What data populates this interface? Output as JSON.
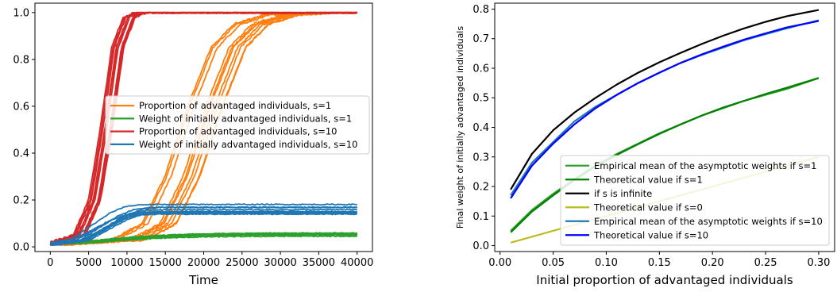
{
  "chart_data": [
    {
      "type": "line",
      "title": "",
      "xlabel": "Time",
      "ylabel": "",
      "xlim": [
        -2000,
        42000
      ],
      "ylim": [
        -0.02,
        1.04
      ],
      "x_ticks": [
        "0",
        "5000",
        "10000",
        "15000",
        "20000",
        "25000",
        "30000",
        "35000",
        "40000"
      ],
      "y_ticks": [
        "0.0",
        "0.2",
        "0.4",
        "0.6",
        "0.8",
        "1.0"
      ],
      "legend_position": "center-right",
      "grid": false,
      "runs_per_series": 10,
      "series": [
        {
          "name": "Proportion of advantaged individuals, s=1",
          "color": "#ff7f0e",
          "x": [
            0,
            10000,
            14000,
            17000,
            20000,
            23000,
            26000,
            30000,
            35000,
            40000
          ],
          "y": [
            0.01,
            0.03,
            0.1,
            0.3,
            0.6,
            0.85,
            0.95,
            0.99,
            1.0,
            1.0
          ]
        },
        {
          "name": "Weight of initially advantaged individuals, s=1",
          "color": "#2ca02c",
          "x": [
            0,
            5000,
            10000,
            15000,
            20000,
            25000,
            30000,
            40000
          ],
          "y": [
            0.01,
            0.02,
            0.035,
            0.045,
            0.05,
            0.052,
            0.053,
            0.053
          ]
        },
        {
          "name": "Proportion of advantaged individuals, s=10",
          "color": "#d62728",
          "x": [
            0,
            4000,
            6000,
            7500,
            9000,
            10500,
            12000,
            15000,
            40000
          ],
          "y": [
            0.01,
            0.05,
            0.2,
            0.5,
            0.85,
            0.98,
            1.0,
            1.0,
            1.0
          ]
        },
        {
          "name": "Weight of initially advantaged individuals, s=10",
          "color": "#1f77b4",
          "x": [
            0,
            4000,
            7000,
            9000,
            11000,
            13000,
            15000,
            40000
          ],
          "y": [
            0.01,
            0.03,
            0.09,
            0.13,
            0.155,
            0.162,
            0.163,
            0.163
          ]
        }
      ]
    },
    {
      "type": "line",
      "title": "",
      "xlabel": "Initial proportion of advantaged individuals",
      "ylabel": "Final weight of initially advantaged individuals",
      "xlim": [
        -0.005,
        0.315
      ],
      "ylim": [
        -0.02,
        0.82
      ],
      "x_ticks": [
        "0.00",
        "0.05",
        "0.10",
        "0.15",
        "0.20",
        "0.25",
        "0.30"
      ],
      "y_ticks": [
        "0.0",
        "0.1",
        "0.2",
        "0.3",
        "0.4",
        "0.5",
        "0.6",
        "0.7",
        "0.8"
      ],
      "legend_position": "lower-right",
      "grid": false,
      "series": [
        {
          "name": "Empirical mean of the asymptotic weights if s=1",
          "color": "#2ca02c",
          "x": [
            0.01,
            0.03,
            0.05,
            0.07,
            0.09,
            0.11,
            0.13,
            0.15,
            0.17,
            0.19,
            0.21,
            0.23,
            0.25,
            0.27,
            0.3
          ],
          "y": [
            0.05,
            0.12,
            0.175,
            0.225,
            0.272,
            0.31,
            0.345,
            0.38,
            0.41,
            0.44,
            0.465,
            0.49,
            0.51,
            0.53,
            0.567
          ]
        },
        {
          "name": "Theoretical value if s=1",
          "color": "#008000",
          "x": [
            0.01,
            0.03,
            0.05,
            0.07,
            0.09,
            0.11,
            0.13,
            0.15,
            0.17,
            0.19,
            0.21,
            0.23,
            0.25,
            0.27,
            0.3
          ],
          "y": [
            0.045,
            0.115,
            0.17,
            0.222,
            0.268,
            0.307,
            0.343,
            0.378,
            0.41,
            0.44,
            0.467,
            0.49,
            0.513,
            0.534,
            0.567
          ]
        },
        {
          "name": "if s is infinite",
          "color": "#000000",
          "x": [
            0.01,
            0.03,
            0.05,
            0.07,
            0.09,
            0.11,
            0.13,
            0.15,
            0.17,
            0.19,
            0.21,
            0.23,
            0.25,
            0.27,
            0.3
          ],
          "y": [
            0.19,
            0.31,
            0.39,
            0.45,
            0.5,
            0.545,
            0.585,
            0.62,
            0.652,
            0.682,
            0.71,
            0.735,
            0.757,
            0.776,
            0.797
          ]
        },
        {
          "name": "Theoretical value if s=0",
          "color": "#bcbd22",
          "x": [
            0.01,
            0.3
          ],
          "y": [
            0.01,
            0.3
          ]
        },
        {
          "name": "Empirical mean of the asymptotic weights if s=10",
          "color": "#1f77b4",
          "x": [
            0.01,
            0.03,
            0.05,
            0.07,
            0.09,
            0.11,
            0.13,
            0.15,
            0.17,
            0.19,
            0.21,
            0.23,
            0.25,
            0.27,
            0.3
          ],
          "y": [
            0.17,
            0.28,
            0.35,
            0.42,
            0.47,
            0.51,
            0.55,
            0.585,
            0.618,
            0.645,
            0.67,
            0.695,
            0.715,
            0.735,
            0.762
          ]
        },
        {
          "name": "Theoretical value if s=10",
          "color": "#0000ff",
          "x": [
            0.01,
            0.03,
            0.05,
            0.07,
            0.09,
            0.11,
            0.13,
            0.15,
            0.17,
            0.19,
            0.21,
            0.23,
            0.25,
            0.27,
            0.3
          ],
          "y": [
            0.16,
            0.27,
            0.345,
            0.41,
            0.465,
            0.51,
            0.55,
            0.585,
            0.618,
            0.647,
            0.673,
            0.697,
            0.718,
            0.738,
            0.76
          ]
        }
      ]
    }
  ]
}
